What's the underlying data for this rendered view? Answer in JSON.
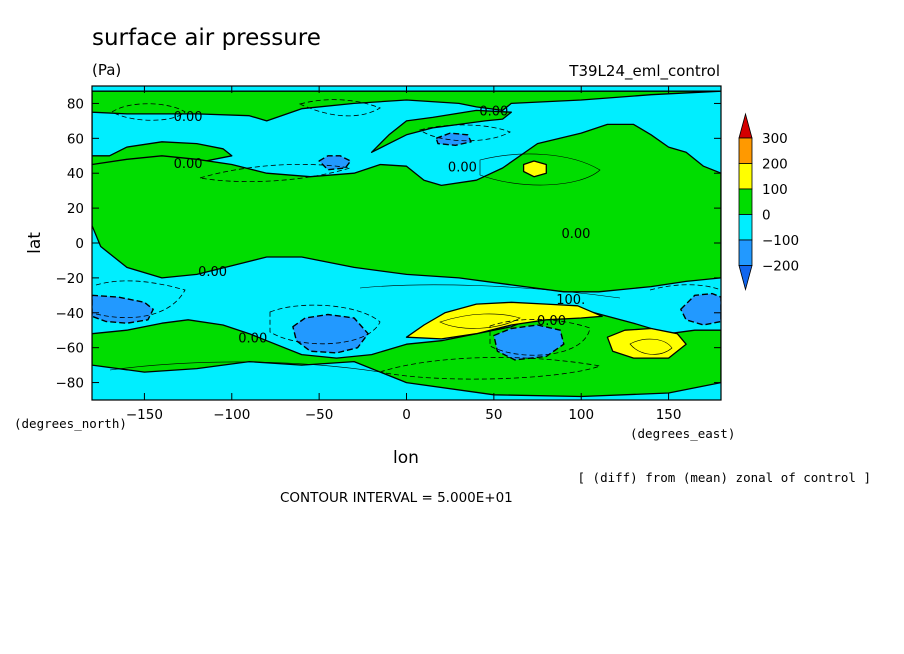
{
  "chart_data": {
    "type": "contour",
    "title": "surface air pressure",
    "units": "(Pa)",
    "experiment": "T39L24_eml_control",
    "xlabel": "lon",
    "ylabel": "lat",
    "x_units": "(degrees_east)",
    "y_units": "(degrees_north)",
    "xlim": [
      -180,
      180
    ],
    "ylim": [
      -90,
      90
    ],
    "x_ticks": [
      -150,
      -100,
      -50,
      0,
      50,
      100,
      150
    ],
    "y_ticks": [
      80,
      60,
      40,
      20,
      0,
      -20,
      -40,
      -60,
      -80
    ],
    "contour_interval_text": "CONTOUR INTERVAL = 5.000E+01",
    "note": "[ (diff) from (mean) zonal of control ]",
    "colorbar": {
      "labels": [
        "300",
        "200",
        "100",
        "0",
        "−100",
        "−200"
      ],
      "colors": [
        "#d40000",
        "#ff9900",
        "#ffff00",
        "#00dd00",
        "#00eeff",
        "#2299ff",
        "#1166ee"
      ]
    },
    "fill_colors": {
      "n200_n100": "#2299ff",
      "n100_0": "#00eeff",
      "zero_100": "#00dd00",
      "hundred_200": "#ffff00"
    },
    "contour_labels": [
      {
        "text": "0.00",
        "lon": -125,
        "lat": 70
      },
      {
        "text": "0.00",
        "lon": -125,
        "lat": 43
      },
      {
        "text": "0.00",
        "lon": 50,
        "lat": 73
      },
      {
        "text": "0.00",
        "lon": 32,
        "lat": 41
      },
      {
        "text": "0.00",
        "lon": 97,
        "lat": 3
      },
      {
        "text": "0.00",
        "lon": -111,
        "lat": -19
      },
      {
        "text": "0.00",
        "lon": -88,
        "lat": -57
      },
      {
        "text": "100.",
        "lon": 94,
        "lat": -35
      },
      {
        "text": "0.00",
        "lon": 83,
        "lat": -47
      }
    ],
    "regions": [
      {
        "name": "land-north-pacific",
        "level": "0 to 100",
        "lonlat": [
          [
            -180,
            87
          ],
          [
            -180,
            50
          ],
          [
            -170,
            50
          ],
          [
            -160,
            55
          ],
          [
            -140,
            58
          ],
          [
            -120,
            57
          ],
          [
            -105,
            54
          ],
          [
            -100,
            50
          ],
          [
            -115,
            47
          ],
          [
            -140,
            45
          ],
          [
            -160,
            42
          ],
          [
            -180,
            38
          ],
          [
            -180,
            87
          ]
        ]
      },
      {
        "name": "land-north-top",
        "level": "0 to 100",
        "lonlat": [
          [
            -180,
            87
          ],
          [
            -180,
            75
          ],
          [
            -160,
            74
          ],
          [
            -120,
            74
          ],
          [
            -90,
            73
          ],
          [
            -80,
            70
          ],
          [
            -60,
            77
          ],
          [
            -30,
            80
          ],
          [
            0,
            82
          ],
          [
            30,
            80
          ],
          [
            40,
            78
          ],
          [
            55,
            76
          ],
          [
            60,
            80
          ],
          [
            100,
            82
          ],
          [
            140,
            85
          ],
          [
            180,
            87
          ]
        ]
      },
      {
        "name": "land-north-atlantic",
        "level": "0 to 100",
        "lonlat": [
          [
            -20,
            52
          ],
          [
            -10,
            62
          ],
          [
            0,
            70
          ],
          [
            15,
            72
          ],
          [
            40,
            76
          ],
          [
            60,
            75
          ],
          [
            55,
            71
          ],
          [
            45,
            70
          ],
          [
            30,
            68
          ],
          [
            15,
            66
          ],
          [
            0,
            62
          ],
          [
            -10,
            57
          ],
          [
            -20,
            52
          ]
        ]
      },
      {
        "name": "land-eurasia",
        "level": "0 to 100",
        "lonlat": [
          [
            -180,
            45
          ],
          [
            -160,
            48
          ],
          [
            -140,
            50
          ],
          [
            -120,
            48
          ],
          [
            -100,
            45
          ],
          [
            -80,
            40
          ],
          [
            -55,
            38
          ],
          [
            -30,
            40
          ],
          [
            -15,
            45
          ],
          [
            0,
            44
          ],
          [
            10,
            36
          ],
          [
            20,
            33
          ],
          [
            40,
            36
          ],
          [
            55,
            43
          ],
          [
            75,
            57
          ],
          [
            100,
            63
          ],
          [
            115,
            68
          ],
          [
            130,
            68
          ],
          [
            140,
            62
          ],
          [
            150,
            55
          ],
          [
            160,
            52
          ],
          [
            170,
            44
          ],
          [
            180,
            40
          ],
          [
            180,
            -20
          ],
          [
            160,
            -22
          ],
          [
            140,
            -25
          ],
          [
            110,
            -28
          ],
          [
            90,
            -28
          ],
          [
            60,
            -24
          ],
          [
            30,
            -20
          ],
          [
            0,
            -18
          ],
          [
            -30,
            -14
          ],
          [
            -60,
            -8
          ],
          [
            -80,
            -8
          ],
          [
            -100,
            -13
          ],
          [
            -120,
            -18
          ],
          [
            -140,
            -20
          ],
          [
            -160,
            -14
          ],
          [
            -175,
            -2
          ],
          [
            -180,
            10
          ],
          [
            -180,
            45
          ]
        ]
      },
      {
        "name": "land-south",
        "level": "0 to 100",
        "lonlat": [
          [
            -180,
            -52
          ],
          [
            -160,
            -50
          ],
          [
            -140,
            -46
          ],
          [
            -125,
            -44
          ],
          [
            -105,
            -47
          ],
          [
            -90,
            -52
          ],
          [
            -80,
            -56
          ],
          [
            -60,
            -64
          ],
          [
            -40,
            -66
          ],
          [
            -20,
            -64
          ],
          [
            0,
            -58
          ],
          [
            20,
            -56
          ],
          [
            40,
            -52
          ],
          [
            60,
            -48
          ],
          [
            80,
            -40
          ],
          [
            100,
            -38
          ],
          [
            130,
            -46
          ],
          [
            150,
            -52
          ],
          [
            165,
            -50
          ],
          [
            180,
            -50
          ],
          [
            180,
            -80
          ],
          [
            150,
            -86
          ],
          [
            100,
            -88
          ],
          [
            50,
            -87
          ],
          [
            0,
            -80
          ],
          [
            -30,
            -68
          ],
          [
            -60,
            -70
          ],
          [
            -90,
            -68
          ],
          [
            -120,
            -72
          ],
          [
            -150,
            -74
          ],
          [
            -180,
            -70
          ]
        ]
      },
      {
        "name": "yellow-south-atlantic",
        "level": "100 to 200",
        "lonlat": [
          [
            0,
            -54
          ],
          [
            10,
            -47
          ],
          [
            22,
            -40
          ],
          [
            40,
            -35
          ],
          [
            60,
            -34
          ],
          [
            80,
            -35
          ],
          [
            98,
            -36
          ],
          [
            112,
            -42
          ],
          [
            100,
            -43
          ],
          [
            80,
            -44
          ],
          [
            60,
            -47
          ],
          [
            40,
            -52
          ],
          [
            20,
            -55
          ],
          [
            0,
            -54
          ]
        ]
      },
      {
        "name": "yellow-south-pacific",
        "level": "100 to 200",
        "lonlat": [
          [
            115,
            -54
          ],
          [
            125,
            -50
          ],
          [
            140,
            -49
          ],
          [
            155,
            -52
          ],
          [
            160,
            -58
          ],
          [
            150,
            -66
          ],
          [
            130,
            -66
          ],
          [
            118,
            -62
          ],
          [
            115,
            -54
          ]
        ]
      },
      {
        "name": "yellow-asia",
        "level": "100 to 200",
        "lonlat": [
          [
            67,
            45
          ],
          [
            73,
            47
          ],
          [
            80,
            45
          ],
          [
            80,
            40
          ],
          [
            73,
            38
          ],
          [
            67,
            41
          ],
          [
            67,
            45
          ]
        ]
      },
      {
        "name": "blue-north-pacific",
        "level": "-200 to -100",
        "lonlat": [
          [
            -50,
            47
          ],
          [
            -45,
            50
          ],
          [
            -38,
            50
          ],
          [
            -32,
            47
          ],
          [
            -35,
            43
          ],
          [
            -45,
            42
          ],
          [
            -50,
            47
          ]
        ]
      },
      {
        "name": "blue-north-atlantic",
        "level": "-200 to -100",
        "lonlat": [
          [
            17,
            60
          ],
          [
            25,
            63
          ],
          [
            35,
            62
          ],
          [
            37,
            58
          ],
          [
            28,
            56
          ],
          [
            18,
            57
          ],
          [
            17,
            60
          ]
        ]
      },
      {
        "name": "blue-west-pacific",
        "level": "-200 to -100",
        "lonlat": [
          [
            -180,
            -30
          ],
          [
            -165,
            -31
          ],
          [
            -150,
            -34
          ],
          [
            -145,
            -38
          ],
          [
            -148,
            -44
          ],
          [
            -160,
            -46
          ],
          [
            -172,
            -45
          ],
          [
            -180,
            -42
          ]
        ]
      },
      {
        "name": "blue-east-pacific",
        "level": "-200 to -100",
        "lonlat": [
          [
            157,
            -38
          ],
          [
            165,
            -30
          ],
          [
            175,
            -29
          ],
          [
            180,
            -31
          ],
          [
            180,
            -45
          ],
          [
            170,
            -47
          ],
          [
            160,
            -44
          ],
          [
            157,
            -38
          ]
        ]
      },
      {
        "name": "blue-mid-pacific",
        "level": "-200 to -100",
        "lonlat": [
          [
            -65,
            -48
          ],
          [
            -58,
            -43
          ],
          [
            -45,
            -41
          ],
          [
            -30,
            -43
          ],
          [
            -22,
            -52
          ],
          [
            -28,
            -60
          ],
          [
            -40,
            -63
          ],
          [
            -55,
            -62
          ],
          [
            -63,
            -56
          ],
          [
            -65,
            -48
          ]
        ]
      },
      {
        "name": "blue-south-atlantic",
        "level": "-200 to -100",
        "lonlat": [
          [
            50,
            -53
          ],
          [
            60,
            -49
          ],
          [
            75,
            -47
          ],
          [
            88,
            -50
          ],
          [
            90,
            -58
          ],
          [
            80,
            -65
          ],
          [
            62,
            -67
          ],
          [
            52,
            -62
          ],
          [
            50,
            -53
          ]
        ]
      }
    ]
  }
}
